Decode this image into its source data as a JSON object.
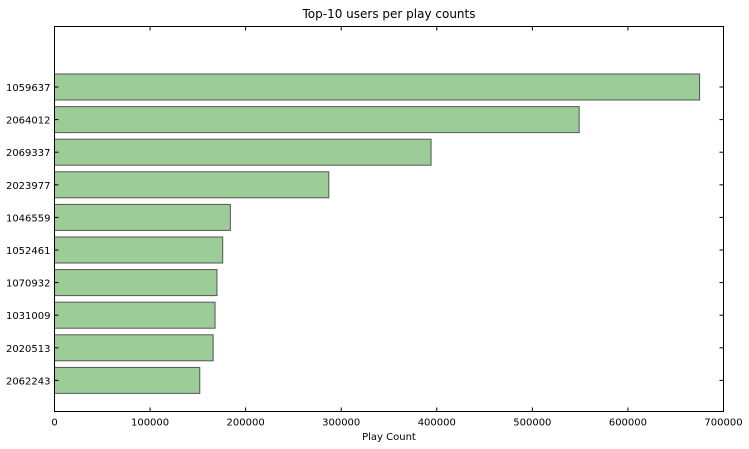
{
  "chart_data": {
    "type": "bar",
    "orientation": "horizontal",
    "title": "Top-10 users per play counts",
    "xlabel": "Play Count",
    "ylabel": "",
    "categories": [
      "1059637",
      "2064012",
      "2069337",
      "2023977",
      "1046559",
      "1052461",
      "1070932",
      "1031009",
      "2020513",
      "2062243"
    ],
    "values": [
      675000,
      549000,
      394000,
      287000,
      184000,
      176000,
      170000,
      168000,
      166000,
      152000
    ],
    "xlim": [
      0,
      700000
    ],
    "xticks": [
      0,
      100000,
      200000,
      300000,
      400000,
      500000,
      600000,
      700000
    ],
    "xtick_labels": [
      "0",
      "100000",
      "200000",
      "300000",
      "400000",
      "500000",
      "600000",
      "700000"
    ],
    "grid": false,
    "bar_color": "#9ccc98",
    "bar_edge_color": "#555555"
  }
}
